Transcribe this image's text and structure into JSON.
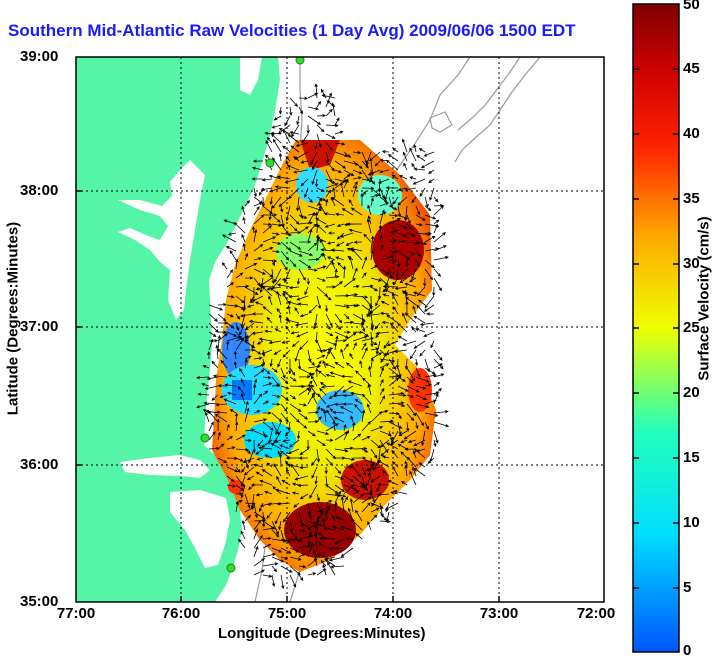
{
  "title": "Southern Mid-Atlantic Raw Velocities (1 Day Avg) 2009/06/06 1500 EDT",
  "axes": {
    "xlabel": "Longitude (Degrees:Minutes)",
    "ylabel": "Latitude (Degrees:Minutes)",
    "x_ticks": [
      "77:00",
      "76:00",
      "75:00",
      "74:00",
      "73:00",
      "72:00"
    ],
    "y_ticks": [
      "39:00",
      "38:00",
      "37:00",
      "36:00",
      "35:00"
    ]
  },
  "colorbar": {
    "label": "Surface Velocity (cm/s)",
    "ticks": [
      "50",
      "45",
      "40",
      "35",
      "30",
      "25",
      "20",
      "15",
      "10",
      "5",
      "0"
    ],
    "range": [
      0,
      50
    ]
  },
  "colors": {
    "land": "#55f5a8",
    "water": "#ffffff",
    "title": "#1a1aff",
    "contour": "#9a9a9a",
    "station": "#33dd33"
  }
}
